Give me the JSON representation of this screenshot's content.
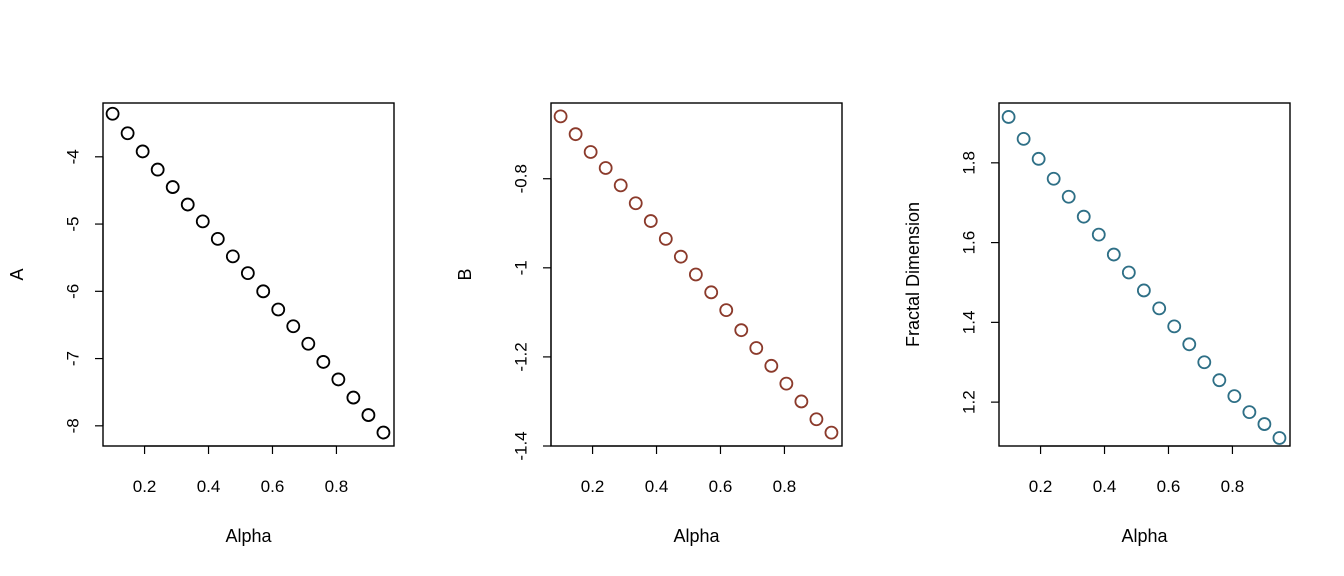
{
  "chart_data": [
    {
      "type": "scatter",
      "xlabel": "Alpha",
      "ylabel": "A",
      "color": "#000000",
      "xlim": [
        0.07,
        0.98
      ],
      "ylim": [
        -8.3,
        -3.2
      ],
      "xticks": [
        0.2,
        0.4,
        0.6,
        0.8
      ],
      "yticks": [
        -4,
        -5,
        -6,
        -7,
        -8
      ],
      "x": [
        0.1,
        0.147,
        0.194,
        0.241,
        0.288,
        0.335,
        0.382,
        0.429,
        0.476,
        0.523,
        0.571,
        0.618,
        0.665,
        0.712,
        0.759,
        0.806,
        0.853,
        0.9,
        0.947
      ],
      "y": [
        -3.36,
        -3.65,
        -3.92,
        -4.19,
        -4.45,
        -4.71,
        -4.96,
        -5.22,
        -5.48,
        -5.73,
        -6.0,
        -6.27,
        -6.52,
        -6.78,
        -7.05,
        -7.31,
        -7.58,
        -7.84,
        -8.1
      ]
    },
    {
      "type": "scatter",
      "xlabel": "Alpha",
      "ylabel": "B",
      "color": "#8b3a2b",
      "xlim": [
        0.07,
        0.98
      ],
      "ylim": [
        -1.4,
        -0.63
      ],
      "xticks": [
        0.2,
        0.4,
        0.6,
        0.8
      ],
      "yticks": [
        -0.8,
        -1.0,
        -1.2,
        -1.4
      ],
      "x": [
        0.1,
        0.147,
        0.194,
        0.241,
        0.288,
        0.335,
        0.382,
        0.429,
        0.476,
        0.523,
        0.571,
        0.618,
        0.665,
        0.712,
        0.759,
        0.806,
        0.853,
        0.9,
        0.947
      ],
      "y": [
        -0.66,
        -0.7,
        -0.74,
        -0.776,
        -0.815,
        -0.855,
        -0.895,
        -0.935,
        -0.975,
        -1.015,
        -1.055,
        -1.095,
        -1.14,
        -1.18,
        -1.22,
        -1.26,
        -1.3,
        -1.34,
        -1.37
      ]
    },
    {
      "type": "scatter",
      "xlabel": "Alpha",
      "ylabel": "Fractal Dimension",
      "color": "#2e6f86",
      "xlim": [
        0.07,
        0.98
      ],
      "ylim": [
        1.09,
        1.95
      ],
      "xticks": [
        0.2,
        0.4,
        0.6,
        0.8
      ],
      "yticks": [
        1.2,
        1.4,
        1.6,
        1.8
      ],
      "x": [
        0.1,
        0.147,
        0.194,
        0.241,
        0.288,
        0.335,
        0.382,
        0.429,
        0.476,
        0.523,
        0.571,
        0.618,
        0.665,
        0.712,
        0.759,
        0.806,
        0.853,
        0.9,
        0.947
      ],
      "y": [
        1.915,
        1.86,
        1.81,
        1.76,
        1.715,
        1.665,
        1.62,
        1.57,
        1.525,
        1.48,
        1.435,
        1.39,
        1.345,
        1.3,
        1.255,
        1.215,
        1.175,
        1.145,
        1.11
      ]
    }
  ]
}
